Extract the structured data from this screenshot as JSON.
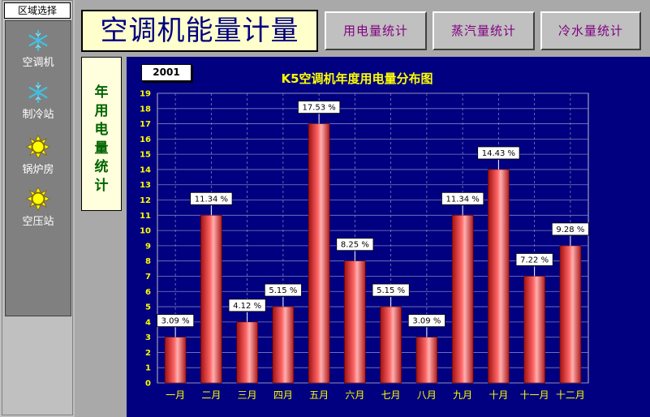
{
  "sidebar": {
    "header": "区域选择",
    "items": [
      {
        "label": "空调机",
        "icon": "snowflake-icon"
      },
      {
        "label": "制冷站",
        "icon": "snowflake-icon"
      },
      {
        "label": "锅炉房",
        "icon": "sun-icon"
      },
      {
        "label": "空压站",
        "icon": "sun-icon"
      }
    ]
  },
  "header": {
    "title": "空调机能量计量",
    "buttons": [
      "用电量统计",
      "蒸汽量统计",
      "冷水量统计"
    ]
  },
  "side_label": "年用电量统计",
  "year": "2001",
  "colors": {
    "chart_bg": "#000080",
    "bar": "#ff6666",
    "title": "#ffff00",
    "sidebar_icon_snow": "#40c0e0",
    "sidebar_icon_sun": "#ffff00"
  },
  "chart_data": {
    "type": "bar",
    "title": "K5空调机年度用电量分布图",
    "categories": [
      "一月",
      "二月",
      "三月",
      "四月",
      "五月",
      "六月",
      "七月",
      "八月",
      "九月",
      "十月",
      "十一月",
      "十二月"
    ],
    "values": [
      3,
      11,
      4,
      5,
      17,
      8,
      5,
      3,
      11,
      14,
      7,
      9
    ],
    "labels": [
      "3.09 %",
      "11.34 %",
      "4.12 %",
      "5.15 %",
      "17.53 %",
      "8.25 %",
      "5.15 %",
      "3.09 %",
      "11.34 %",
      "14.43 %",
      "7.22 %",
      "9.28 %"
    ],
    "ylim": [
      0,
      19
    ],
    "yticks": [
      0,
      1,
      2,
      3,
      4,
      5,
      6,
      7,
      8,
      9,
      10,
      11,
      12,
      13,
      14,
      15,
      16,
      17,
      18,
      19
    ],
    "grid": true
  }
}
